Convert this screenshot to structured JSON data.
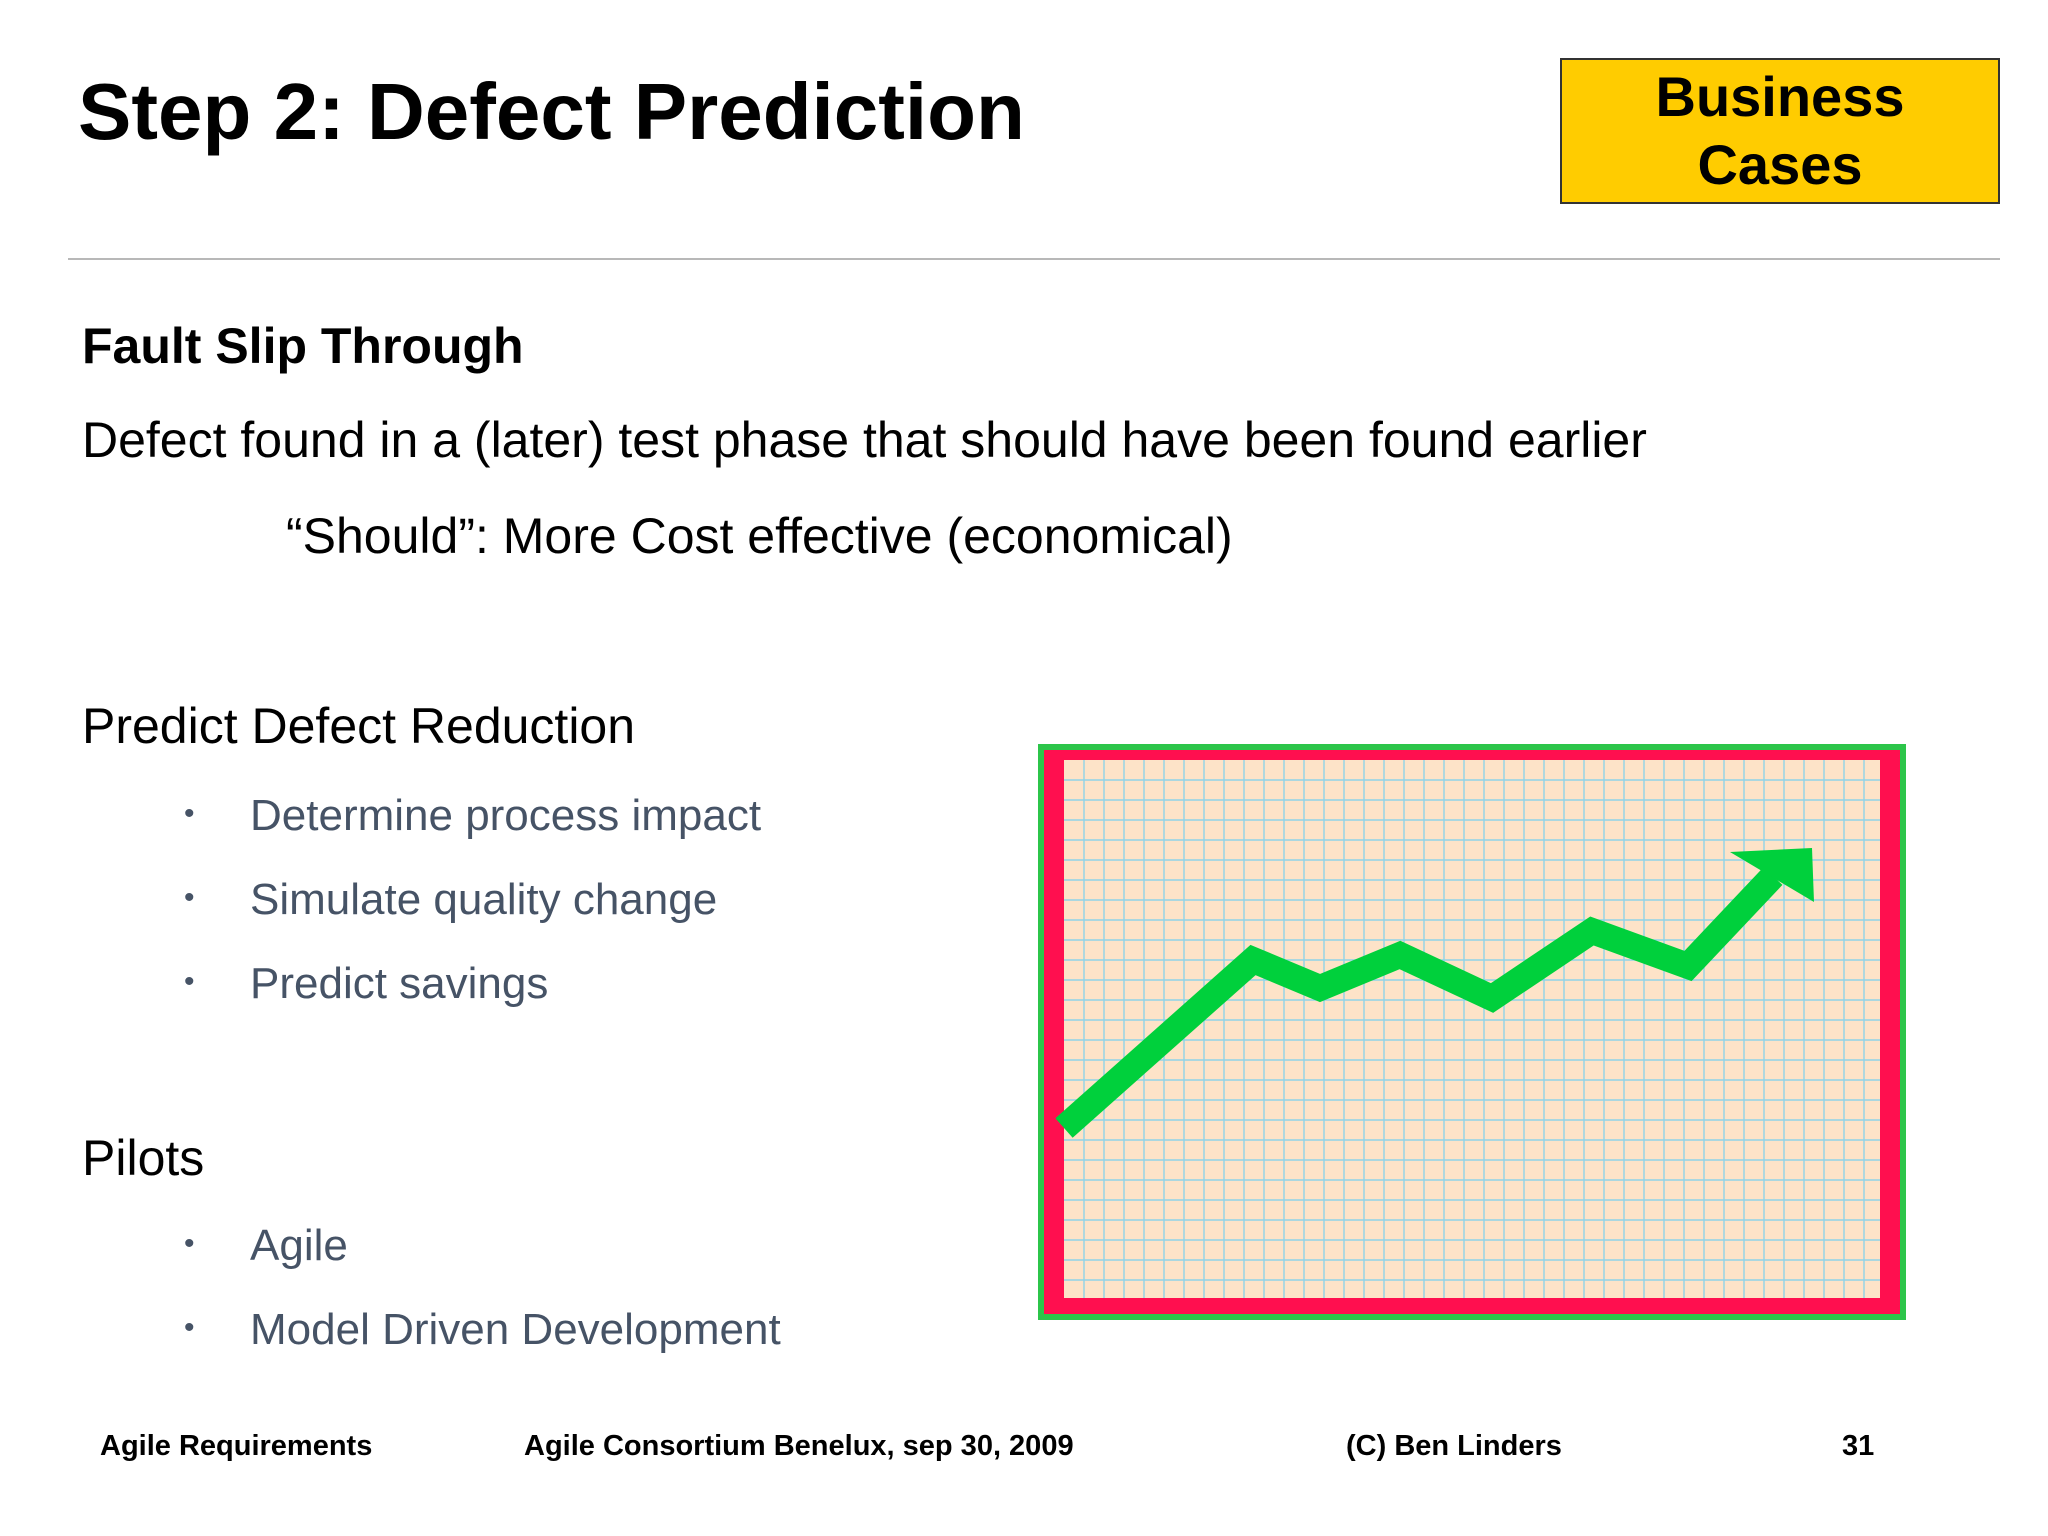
{
  "slide": {
    "title": "Step 2: Defect Prediction",
    "badge": {
      "line1": "Business",
      "line2": "Cases",
      "color": "#ffcc00"
    },
    "heading": "Fault Slip Through",
    "definition": "Defect found in a (later) test phase that should have been found earlier",
    "note": "“Should”: More Cost effective (economical)",
    "section1": {
      "title": "Predict Defect Reduction",
      "bullets": [
        "Determine process impact",
        "Simulate quality change",
        "Predict savings"
      ]
    },
    "section2": {
      "title": "Pilots",
      "bullets": [
        "Agile",
        "Model Driven Development"
      ]
    },
    "bullet_glyph": "•",
    "illustration": {
      "icon": "rising-trend-chart-icon",
      "frame_color": "#2cc54a",
      "border_color": "#ff0f4f",
      "paper_color": "#fde3c8",
      "grid_color": "#8fd3e8",
      "line_color": "#00d03c"
    }
  },
  "footer": {
    "left": "Agile Requirements",
    "center": "Agile Consortium Benelux, sep 30, 2009",
    "right": "(C) Ben Linders",
    "page": "31"
  }
}
